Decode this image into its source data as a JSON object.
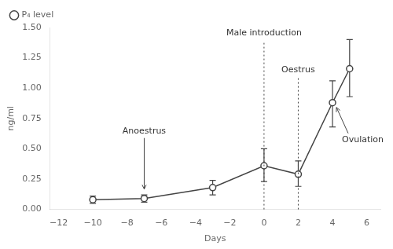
{
  "chart_data": {
    "type": "line",
    "x": [
      -10,
      -7,
      -3,
      0,
      2,
      4,
      5
    ],
    "series": [
      {
        "name": "P₄ level",
        "color": "#444444",
        "marker": "circle",
        "values": [
          0.08,
          0.09,
          0.18,
          0.36,
          0.29,
          0.88,
          1.16
        ],
        "error_low": [
          0.03,
          0.03,
          0.06,
          0.13,
          0.1,
          0.2,
          0.23
        ],
        "error_high": [
          0.03,
          0.03,
          0.06,
          0.14,
          0.11,
          0.18,
          0.24
        ]
      }
    ],
    "xlabel": "Days",
    "ylabel": "ng/ml",
    "xlim": [
      -12.5,
      6.8
    ],
    "ylim": [
      0.0,
      1.5
    ],
    "xticks": [
      {
        "value": -12,
        "label": "−12"
      },
      {
        "value": -10,
        "label": "−10"
      },
      {
        "value": -8,
        "label": "−8"
      },
      {
        "value": -6,
        "label": "−6"
      },
      {
        "value": -4,
        "label": "−4"
      },
      {
        "value": -2,
        "label": "−2"
      },
      0,
      2,
      4,
      6
    ],
    "yticks": [
      {
        "value": 0,
        "label": "0.00"
      },
      {
        "value": 0.25,
        "label": "0.25"
      },
      {
        "value": 0.5,
        "label": "0.50"
      },
      {
        "value": 0.75,
        "label": "0.75"
      },
      {
        "value": 1.0,
        "label": "1.00"
      },
      {
        "value": 1.25,
        "label": "1.25"
      },
      {
        "value": 1.5,
        "label": "1.50"
      }
    ],
    "grid": false,
    "legend": "upper left",
    "annotations": [
      {
        "text": "Anoestrus",
        "x": -7,
        "marker": "arrow"
      },
      {
        "text": "Male introduction",
        "x": 0,
        "line_style": "dotted"
      },
      {
        "text": "Oestrus",
        "x": 2,
        "line_style": "dotted"
      },
      {
        "text": "Ovulation",
        "x": 4,
        "marker": "arrow"
      }
    ]
  }
}
